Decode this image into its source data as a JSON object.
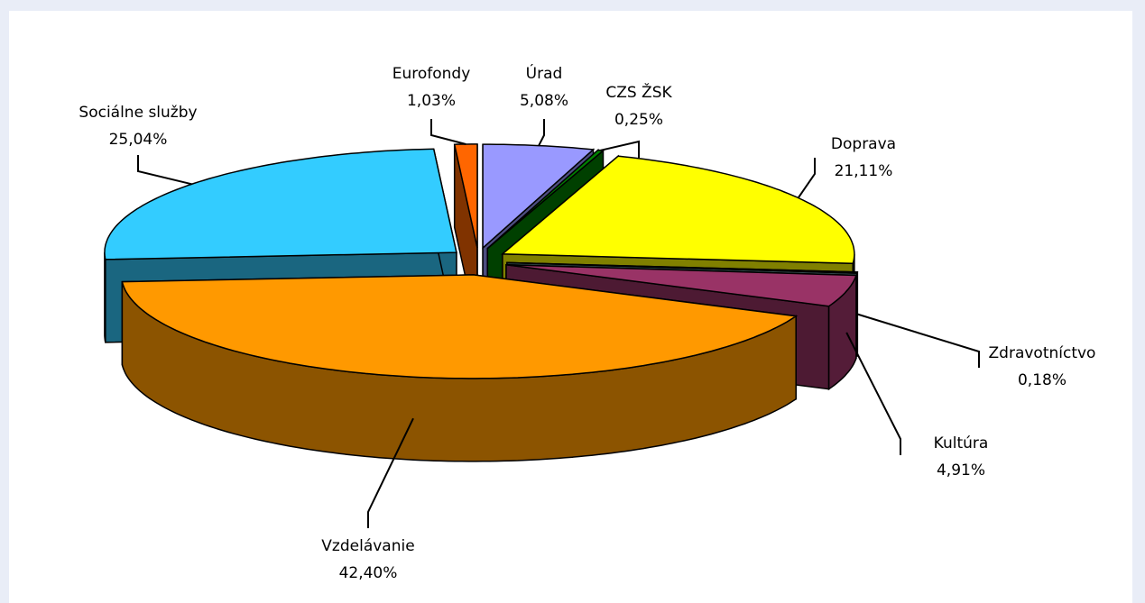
{
  "chart_data": {
    "type": "pie3d",
    "categories": [
      "Úrad",
      "CZS ŽSK",
      "Doprava",
      "Zdravotníctvo",
      "Kultúra",
      "Vzdelávanie",
      "Sociálne služby",
      "Eurofondy"
    ],
    "values": [
      5.08,
      0.25,
      21.11,
      0.18,
      4.91,
      42.4,
      25.04,
      1.03
    ],
    "value_labels": [
      "5,08%",
      "0,25%",
      "21,11%",
      "0,18%",
      "4,91%",
      "42,40%",
      "25,04%",
      "1,03%"
    ],
    "colors": [
      "#9999ff",
      "#008000",
      "#ffff00",
      "#669999",
      "#993366",
      "#ff9900",
      "#33ccff",
      "#ff6600"
    ]
  }
}
